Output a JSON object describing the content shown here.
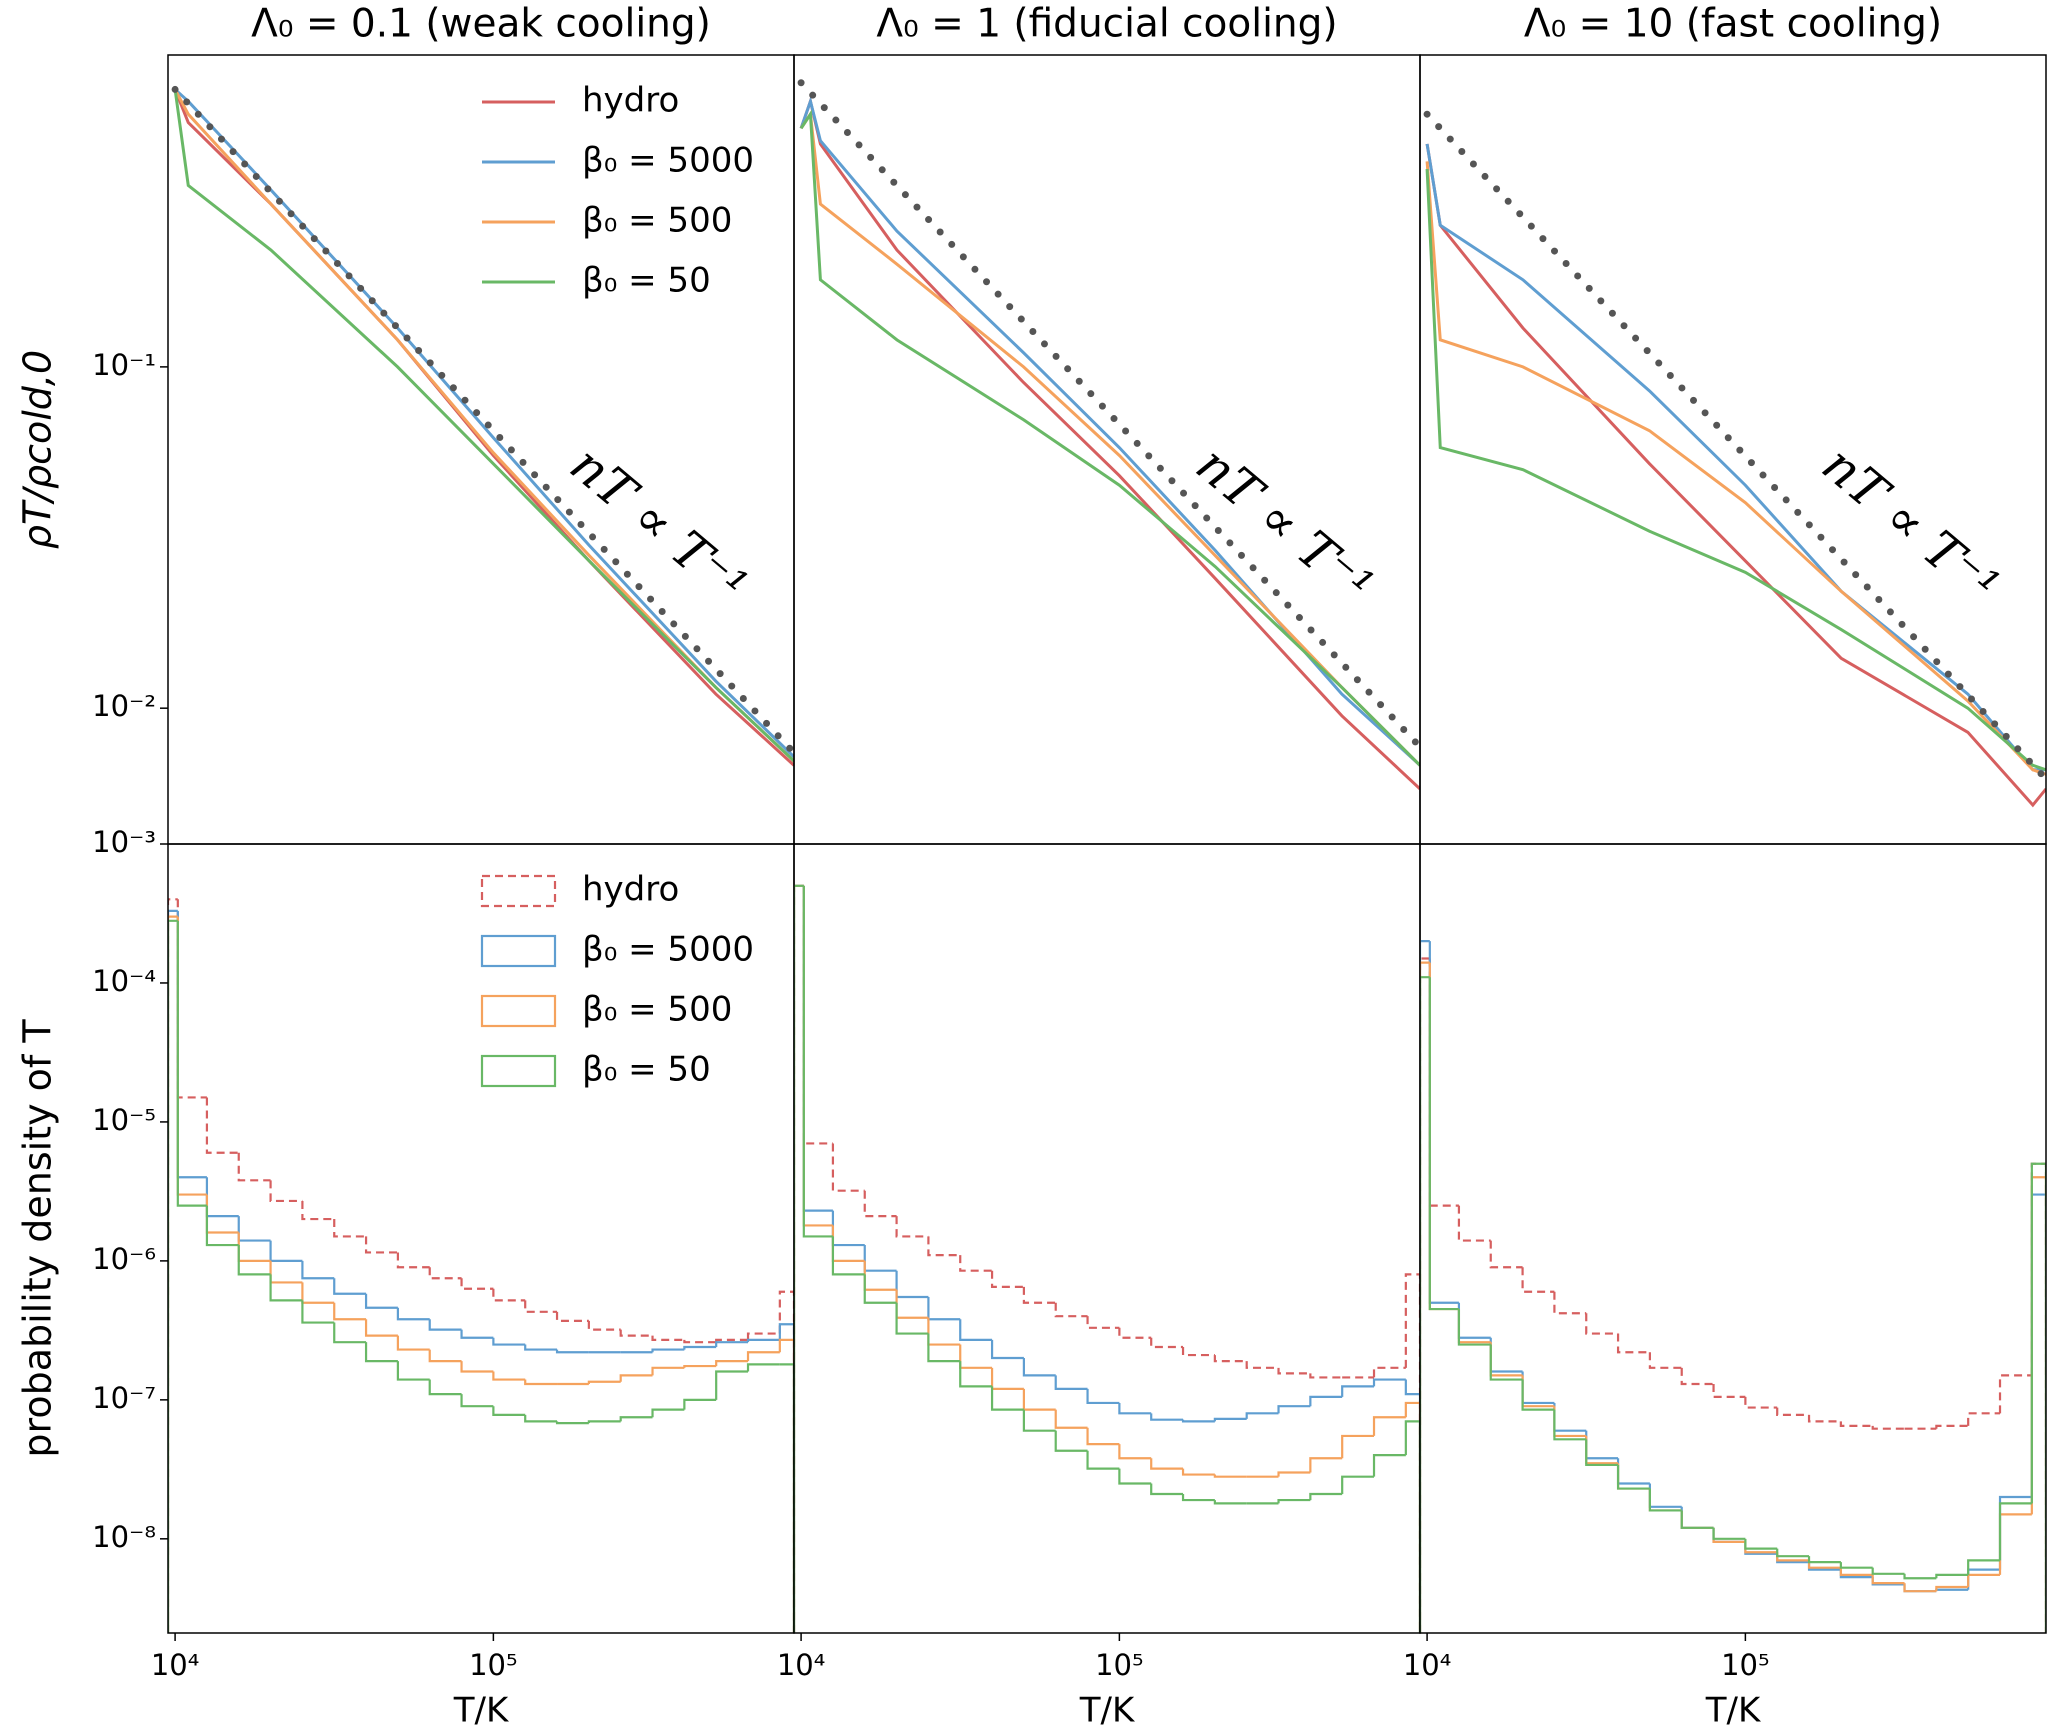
{
  "chart_data": [
    {
      "type": "line",
      "title": "Λ₀ = 0.1 (weak cooling)",
      "y_label": "ρT/ρcold,0",
      "annotation": "nT ∝ T⁻¹",
      "xlog": true,
      "ylog": true,
      "xlim": [
        9500,
        880000
      ],
      "ylim": [
        0.004,
        0.82
      ],
      "yticks": [
        {
          "value": 0.1,
          "label": "10⁻¹"
        },
        {
          "value": 0.01,
          "label": "10⁻²"
        }
      ],
      "legend": "upper center",
      "series": [
        {
          "name": "hydro",
          "color": "#d65f5f",
          "x": [
            10000,
            11000,
            20000,
            50000,
            100000,
            200000,
            500000,
            880000
          ],
          "values": [
            0.65,
            0.52,
            0.3,
            0.12,
            0.055,
            0.027,
            0.011,
            0.0068
          ]
        },
        {
          "name": "β₀ = 5000",
          "color": "#5f9ed1",
          "x": [
            10000,
            11000,
            20000,
            50000,
            100000,
            200000,
            500000,
            880000
          ],
          "values": [
            0.65,
            0.6,
            0.33,
            0.13,
            0.062,
            0.03,
            0.012,
            0.0072
          ]
        },
        {
          "name": "β₀ = 500",
          "color": "#f5a25d",
          "x": [
            10000,
            11000,
            20000,
            50000,
            100000,
            200000,
            500000,
            880000
          ],
          "values": [
            0.65,
            0.55,
            0.3,
            0.12,
            0.056,
            0.028,
            0.0115,
            0.007
          ]
        },
        {
          "name": "β₀ = 50",
          "color": "#69b866",
          "x": [
            10000,
            11000,
            20000,
            50000,
            100000,
            200000,
            500000,
            880000
          ],
          "values": [
            0.65,
            0.34,
            0.22,
            0.1,
            0.052,
            0.027,
            0.0115,
            0.007
          ]
        },
        {
          "color": "#555555",
          "style": "dotted",
          "x": [
            10000,
            880000
          ],
          "values": [
            0.65,
            0.0074
          ]
        }
      ]
    },
    {
      "type": "line",
      "title": "Λ₀ = 1 (fiducial cooling)",
      "annotation": "nT ∝ T⁻¹",
      "xlog": true,
      "ylog": true,
      "xlim": [
        9500,
        880000
      ],
      "ylim": [
        0.004,
        0.82
      ],
      "series": [
        {
          "color": "#d65f5f",
          "x": [
            10000,
            10700,
            11500,
            20000,
            50000,
            100000,
            200000,
            500000,
            880000
          ],
          "values": [
            0.5,
            0.6,
            0.45,
            0.22,
            0.09,
            0.048,
            0.024,
            0.0095,
            0.0058
          ]
        },
        {
          "color": "#5f9ed1",
          "x": [
            10000,
            10700,
            11500,
            20000,
            50000,
            100000,
            200000,
            500000,
            880000
          ],
          "values": [
            0.5,
            0.6,
            0.46,
            0.25,
            0.11,
            0.058,
            0.029,
            0.011,
            0.0068
          ]
        },
        {
          "color": "#f5a25d",
          "x": [
            10000,
            10700,
            11500,
            20000,
            50000,
            100000,
            200000,
            500000,
            880000
          ],
          "values": [
            0.5,
            0.55,
            0.3,
            0.2,
            0.1,
            0.055,
            0.028,
            0.0115,
            0.0068
          ]
        },
        {
          "color": "#69b866",
          "x": [
            10000,
            10700,
            11500,
            20000,
            50000,
            100000,
            200000,
            500000,
            880000
          ],
          "values": [
            0.5,
            0.55,
            0.18,
            0.12,
            0.07,
            0.045,
            0.026,
            0.0115,
            0.0068
          ]
        },
        {
          "color": "#555555",
          "style": "dotted",
          "x": [
            10000,
            880000
          ],
          "values": [
            0.68,
            0.0077
          ]
        }
      ]
    },
    {
      "type": "line",
      "title": "Λ₀ = 10 (fast cooling)",
      "annotation": "nT ∝ T⁻¹",
      "xlog": true,
      "ylog": true,
      "xlim": [
        9500,
        880000
      ],
      "ylim": [
        0.004,
        0.82
      ],
      "series": [
        {
          "color": "#d65f5f",
          "x": [
            10000,
            11000,
            20000,
            50000,
            100000,
            200000,
            500000,
            800000,
            880000
          ],
          "values": [
            0.45,
            0.26,
            0.13,
            0.052,
            0.027,
            0.014,
            0.0085,
            0.0052,
            0.0058
          ]
        },
        {
          "color": "#5f9ed1",
          "x": [
            10000,
            11000,
            20000,
            50000,
            100000,
            200000,
            500000,
            800000,
            880000
          ],
          "values": [
            0.45,
            0.26,
            0.18,
            0.085,
            0.045,
            0.022,
            0.011,
            0.0066,
            0.0066
          ]
        },
        {
          "color": "#f5a25d",
          "x": [
            10000,
            11000,
            20000,
            50000,
            100000,
            200000,
            500000,
            800000,
            880000
          ],
          "values": [
            0.4,
            0.12,
            0.1,
            0.065,
            0.04,
            0.022,
            0.0105,
            0.0066,
            0.0064
          ]
        },
        {
          "color": "#69b866",
          "x": [
            10000,
            11000,
            20000,
            50000,
            100000,
            200000,
            500000,
            800000,
            880000
          ],
          "values": [
            0.38,
            0.058,
            0.05,
            0.033,
            0.025,
            0.017,
            0.01,
            0.0068,
            0.0066
          ]
        },
        {
          "color": "#555555",
          "style": "dotted",
          "x": [
            10000,
            880000
          ],
          "values": [
            0.55,
            0.0062
          ]
        }
      ]
    },
    {
      "type": "histogram",
      "x_label": "T/K",
      "y_label": "probability density of T",
      "xlog": true,
      "ylog": true,
      "xlim": [
        9500,
        880000
      ],
      "ylim": [
        2.1e-09,
        0.001
      ],
      "xticks": [
        {
          "value": 10000,
          "label": "10⁴"
        },
        {
          "value": 100000,
          "label": "10⁵"
        }
      ],
      "yticks": [
        {
          "value": 0.001,
          "label": "10⁻³"
        },
        {
          "value": 0.0001,
          "label": "10⁻⁴"
        },
        {
          "value": 1e-05,
          "label": "10⁻⁵"
        },
        {
          "value": 1e-06,
          "label": "10⁻⁶"
        },
        {
          "value": 1e-07,
          "label": "10⁻⁷"
        },
        {
          "value": 1e-08,
          "label": "10⁻⁸"
        }
      ],
      "legend": "upper center",
      "bins": [
        9500,
        10200,
        12589,
        15849,
        19953,
        25119,
        31623,
        39811,
        50119,
        63096,
        79433,
        100000,
        125893,
        158489,
        199526,
        251189,
        316228,
        398107,
        501187,
        630957,
        794328,
        880000
      ],
      "series": [
        {
          "name": "hydro",
          "color": "#d65f5f",
          "style": "dashed",
          "values": [
            0.0004,
            1.5e-05,
            6e-06,
            3.8e-06,
            2.7e-06,
            2e-06,
            1.5e-06,
            1.15e-06,
            9e-07,
            7.5e-07,
            6.3e-07,
            5.2e-07,
            4.3e-07,
            3.7e-07,
            3.2e-07,
            2.9e-07,
            2.7e-07,
            2.6e-07,
            2.7e-07,
            3e-07,
            6e-07
          ]
        },
        {
          "name": "β₀ = 5000",
          "color": "#5f9ed1",
          "values": [
            0.00033,
            4e-06,
            2.1e-06,
            1.4e-06,
            1e-06,
            7.5e-07,
            5.8e-07,
            4.6e-07,
            3.8e-07,
            3.2e-07,
            2.8e-07,
            2.5e-07,
            2.3e-07,
            2.2e-07,
            2.2e-07,
            2.2e-07,
            2.3e-07,
            2.4e-07,
            2.6e-07,
            2.7e-07,
            3.5e-07
          ]
        },
        {
          "name": "β₀ = 500",
          "color": "#f5a25d",
          "values": [
            0.0003,
            3e-06,
            1.6e-06,
            1e-06,
            7e-07,
            5e-07,
            3.8e-07,
            2.9e-07,
            2.3e-07,
            1.9e-07,
            1.6e-07,
            1.4e-07,
            1.3e-07,
            1.3e-07,
            1.35e-07,
            1.5e-07,
            1.7e-07,
            1.75e-07,
            1.9e-07,
            2.2e-07,
            2.7e-07
          ]
        },
        {
          "name": "β₀ = 50",
          "color": "#69b866",
          "values": [
            0.00028,
            2.5e-06,
            1.3e-06,
            8e-07,
            5.2e-07,
            3.6e-07,
            2.6e-07,
            1.9e-07,
            1.4e-07,
            1.1e-07,
            9e-08,
            7.8e-08,
            7e-08,
            6.8e-08,
            7e-08,
            7.5e-08,
            8.5e-08,
            1e-07,
            1.6e-07,
            1.8e-07,
            1.8e-07
          ]
        }
      ]
    },
    {
      "type": "histogram",
      "x_label": "T/K",
      "xlog": true,
      "ylog": true,
      "xlim": [
        9500,
        880000
      ],
      "ylim": [
        2.1e-09,
        0.001
      ],
      "xticks": [
        {
          "value": 10000,
          "label": "10⁴"
        },
        {
          "value": 100000,
          "label": "10⁵"
        }
      ],
      "bins": [
        9500,
        10200,
        12589,
        15849,
        19953,
        25119,
        31623,
        39811,
        50119,
        63096,
        79433,
        100000,
        125893,
        158489,
        199526,
        251189,
        316228,
        398107,
        501187,
        630957,
        794328,
        880000
      ],
      "series": [
        {
          "color": "#d65f5f",
          "style": "dashed",
          "values": [
            0.0005,
            7e-06,
            3.2e-06,
            2.1e-06,
            1.5e-06,
            1.1e-06,
            8.5e-07,
            6.5e-07,
            5e-07,
            4e-07,
            3.3e-07,
            2.8e-07,
            2.4e-07,
            2.1e-07,
            1.9e-07,
            1.7e-07,
            1.55e-07,
            1.45e-07,
            1.45e-07,
            1.7e-07,
            8e-07
          ]
        },
        {
          "color": "#5f9ed1",
          "values": [
            0.0005,
            2.3e-06,
            1.3e-06,
            8.5e-07,
            5.5e-07,
            3.8e-07,
            2.7e-07,
            2e-07,
            1.5e-07,
            1.2e-07,
            9.5e-08,
            8e-08,
            7.2e-08,
            7e-08,
            7.3e-08,
            8e-08,
            9e-08,
            1.05e-07,
            1.25e-07,
            1.4e-07,
            1.1e-07
          ]
        },
        {
          "color": "#f5a25d",
          "values": [
            0.0005,
            1.8e-06,
            1e-06,
            6.2e-07,
            3.9e-07,
            2.5e-07,
            1.7e-07,
            1.2e-07,
            8.5e-08,
            6.3e-08,
            4.8e-08,
            3.8e-08,
            3.2e-08,
            2.9e-08,
            2.8e-08,
            2.8e-08,
            3e-08,
            3.8e-08,
            5.5e-08,
            7.5e-08,
            9.5e-08
          ]
        },
        {
          "color": "#69b866",
          "values": [
            0.0005,
            1.5e-06,
            8e-07,
            5e-07,
            3e-07,
            1.9e-07,
            1.25e-07,
            8.5e-08,
            6e-08,
            4.3e-08,
            3.2e-08,
            2.5e-08,
            2.1e-08,
            1.9e-08,
            1.8e-08,
            1.8e-08,
            1.9e-08,
            2.1e-08,
            2.8e-08,
            4e-08,
            7e-08
          ]
        }
      ]
    },
    {
      "type": "histogram",
      "x_label": "T/K",
      "xlog": true,
      "ylog": true,
      "xlim": [
        9500,
        880000
      ],
      "ylim": [
        2.1e-09,
        0.001
      ],
      "xticks": [
        {
          "value": 10000,
          "label": "10⁴"
        },
        {
          "value": 100000,
          "label": "10⁵"
        }
      ],
      "bins": [
        9500,
        10200,
        12589,
        15849,
        19953,
        25119,
        31623,
        39811,
        50119,
        63096,
        79433,
        100000,
        125893,
        158489,
        199526,
        251189,
        316228,
        398107,
        501187,
        630957,
        794328,
        880000
      ],
      "series": [
        {
          "color": "#d65f5f",
          "style": "dashed",
          "values": [
            0.00015,
            2.5e-06,
            1.4e-06,
            9e-07,
            6e-07,
            4.2e-07,
            3e-07,
            2.2e-07,
            1.7e-07,
            1.3e-07,
            1.05e-07,
            8.8e-08,
            7.8e-08,
            7e-08,
            6.5e-08,
            6.2e-08,
            6.2e-08,
            6.5e-08,
            8e-08,
            1.5e-07,
            5e-06
          ]
        },
        {
          "color": "#5f9ed1",
          "values": [
            0.0002,
            5e-07,
            2.8e-07,
            1.6e-07,
            9.5e-08,
            6e-08,
            3.8e-08,
            2.5e-08,
            1.7e-08,
            1.2e-08,
            9.5e-09,
            7.8e-09,
            6.8e-09,
            6e-09,
            5.3e-09,
            4.7e-09,
            4.2e-09,
            4.3e-09,
            6e-09,
            2e-08,
            3e-06
          ]
        },
        {
          "color": "#f5a25d",
          "values": [
            0.00014,
            4.5e-07,
            2.6e-07,
            1.5e-07,
            9e-08,
            5.5e-08,
            3.5e-08,
            2.3e-08,
            1.6e-08,
            1.2e-08,
            9.5e-09,
            8e-09,
            7e-09,
            6.2e-09,
            5.5e-09,
            4.8e-09,
            4.2e-09,
            4.5e-09,
            5.5e-09,
            1.5e-08,
            4e-06
          ]
        },
        {
          "color": "#69b866",
          "values": [
            0.00011,
            4.5e-07,
            2.5e-07,
            1.4e-07,
            8.5e-08,
            5.2e-08,
            3.4e-08,
            2.3e-08,
            1.6e-08,
            1.2e-08,
            1e-08,
            8.5e-09,
            7.5e-09,
            6.8e-09,
            6.2e-09,
            5.6e-09,
            5.2e-09,
            5.5e-09,
            7e-09,
            1.8e-08,
            5e-06
          ]
        }
      ]
    }
  ]
}
